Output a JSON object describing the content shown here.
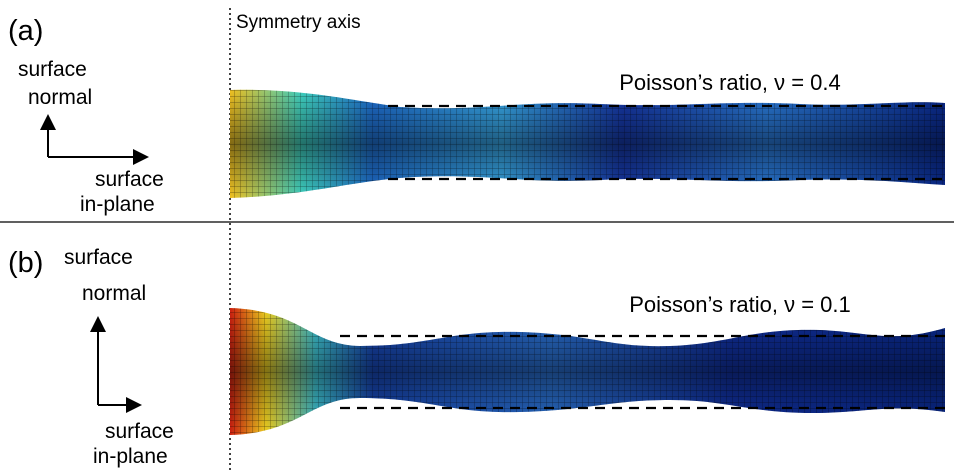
{
  "symmetry_axis": "Symmetry axis",
  "panels": [
    {
      "label": "(a)",
      "normal_label": [
        "surface",
        "normal"
      ],
      "inplane_label": [
        "surface",
        "in-plane"
      ],
      "ratio_label": "Poisson’s ratio, ν = 0.4"
    },
    {
      "label": "(b)",
      "normal_label": [
        "surface",
        "normal"
      ],
      "inplane_label": [
        "surface",
        "in-plane"
      ],
      "ratio_label": "Poisson’s ratio, ν = 0.1"
    }
  ]
}
